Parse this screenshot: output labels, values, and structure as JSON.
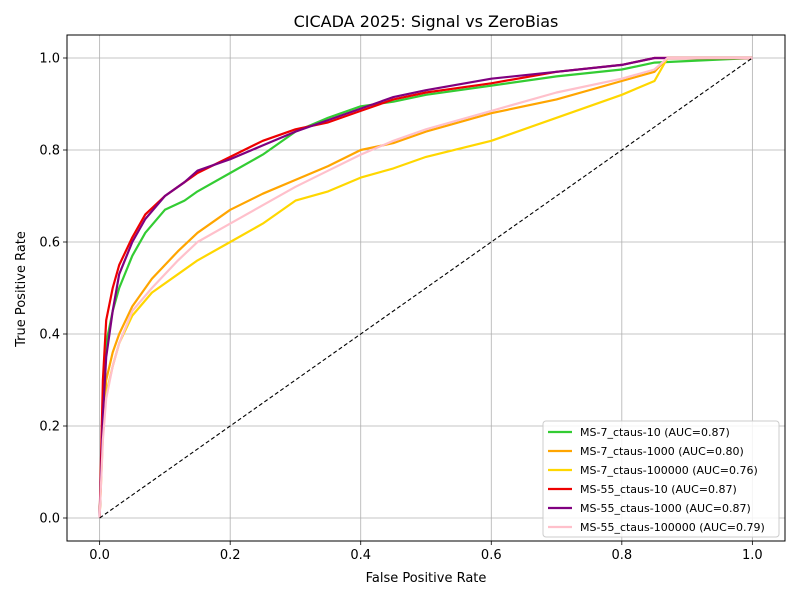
{
  "chart_data": {
    "type": "line",
    "title": "CICADA 2025: Signal vs ZeroBias",
    "xlabel": "False Positive Rate",
    "ylabel": "True Positive Rate",
    "xlim": [
      -0.05,
      1.05
    ],
    "ylim": [
      -0.05,
      1.05
    ],
    "xticks": [
      0.0,
      0.2,
      0.4,
      0.6,
      0.8,
      1.0
    ],
    "yticks": [
      0.0,
      0.2,
      0.4,
      0.6,
      0.8,
      1.0
    ],
    "xtick_labels": [
      "0.0",
      "0.2",
      "0.4",
      "0.6",
      "0.8",
      "1.0"
    ],
    "ytick_labels": [
      "0.0",
      "0.2",
      "0.4",
      "0.6",
      "0.8",
      "1.0"
    ],
    "grid": true,
    "legend_position": "bottom-right",
    "diagonal": {
      "x": [
        0,
        1
      ],
      "y": [
        0,
        1
      ],
      "style": "dashed",
      "color": "#000000"
    },
    "series": [
      {
        "name": "MS-7_ctaus-10 (AUC=0.87)",
        "color": "#33cc33",
        "x": [
          0,
          0.005,
          0.01,
          0.02,
          0.03,
          0.05,
          0.07,
          0.1,
          0.13,
          0.15,
          0.2,
          0.25,
          0.3,
          0.35,
          0.4,
          0.45,
          0.5,
          0.6,
          0.7,
          0.8,
          0.85,
          1.0
        ],
        "y": [
          0,
          0.25,
          0.38,
          0.45,
          0.5,
          0.57,
          0.62,
          0.67,
          0.69,
          0.71,
          0.75,
          0.79,
          0.84,
          0.87,
          0.895,
          0.905,
          0.92,
          0.94,
          0.96,
          0.975,
          0.99,
          1.0
        ]
      },
      {
        "name": "MS-7_ctaus-1000 (AUC=0.80)",
        "color": "#ffa500",
        "x": [
          0,
          0.005,
          0.01,
          0.02,
          0.03,
          0.05,
          0.08,
          0.12,
          0.15,
          0.2,
          0.25,
          0.3,
          0.35,
          0.4,
          0.45,
          0.5,
          0.6,
          0.7,
          0.8,
          0.85,
          0.87,
          1.0
        ],
        "y": [
          0,
          0.2,
          0.3,
          0.36,
          0.4,
          0.46,
          0.52,
          0.58,
          0.62,
          0.67,
          0.705,
          0.735,
          0.765,
          0.8,
          0.815,
          0.84,
          0.88,
          0.91,
          0.95,
          0.97,
          1.0,
          1.0
        ]
      },
      {
        "name": "MS-7_ctaus-100000 (AUC=0.76)",
        "color": "#ffd700",
        "x": [
          0,
          0.005,
          0.01,
          0.02,
          0.03,
          0.05,
          0.08,
          0.12,
          0.15,
          0.2,
          0.25,
          0.3,
          0.35,
          0.4,
          0.45,
          0.5,
          0.6,
          0.7,
          0.8,
          0.85,
          0.87,
          1.0
        ],
        "y": [
          0,
          0.18,
          0.27,
          0.33,
          0.38,
          0.44,
          0.49,
          0.53,
          0.56,
          0.6,
          0.64,
          0.69,
          0.71,
          0.74,
          0.76,
          0.785,
          0.82,
          0.87,
          0.92,
          0.95,
          1.0,
          1.0
        ]
      },
      {
        "name": "MS-55_ctaus-10 (AUC=0.87)",
        "color": "#ee0000",
        "x": [
          0,
          0.005,
          0.01,
          0.02,
          0.03,
          0.05,
          0.07,
          0.1,
          0.13,
          0.15,
          0.2,
          0.25,
          0.3,
          0.35,
          0.4,
          0.45,
          0.5,
          0.6,
          0.7,
          0.8,
          0.85,
          1.0
        ],
        "y": [
          0,
          0.3,
          0.43,
          0.5,
          0.55,
          0.61,
          0.66,
          0.7,
          0.73,
          0.75,
          0.785,
          0.82,
          0.845,
          0.86,
          0.885,
          0.91,
          0.925,
          0.945,
          0.97,
          0.985,
          1.0,
          1.0
        ]
      },
      {
        "name": "MS-55_ctaus-1000 (AUC=0.87)",
        "color": "#800080",
        "x": [
          0,
          0.005,
          0.01,
          0.02,
          0.03,
          0.05,
          0.07,
          0.1,
          0.13,
          0.15,
          0.2,
          0.25,
          0.3,
          0.35,
          0.4,
          0.45,
          0.5,
          0.6,
          0.7,
          0.8,
          0.85,
          1.0
        ],
        "y": [
          0,
          0.22,
          0.35,
          0.45,
          0.53,
          0.6,
          0.65,
          0.7,
          0.73,
          0.755,
          0.78,
          0.81,
          0.84,
          0.865,
          0.89,
          0.915,
          0.93,
          0.955,
          0.97,
          0.985,
          1.0,
          1.0
        ]
      },
      {
        "name": "MS-55_ctaus-100000 (AUC=0.79)",
        "color": "#ffc0cb",
        "x": [
          0,
          0.005,
          0.01,
          0.02,
          0.03,
          0.05,
          0.08,
          0.12,
          0.15,
          0.2,
          0.25,
          0.3,
          0.35,
          0.4,
          0.45,
          0.5,
          0.6,
          0.7,
          0.8,
          0.85,
          0.87,
          1.0
        ],
        "y": [
          0,
          0.17,
          0.26,
          0.33,
          0.38,
          0.45,
          0.5,
          0.56,
          0.6,
          0.64,
          0.68,
          0.72,
          0.755,
          0.79,
          0.82,
          0.845,
          0.885,
          0.925,
          0.955,
          0.975,
          1.0,
          1.0
        ]
      }
    ]
  }
}
